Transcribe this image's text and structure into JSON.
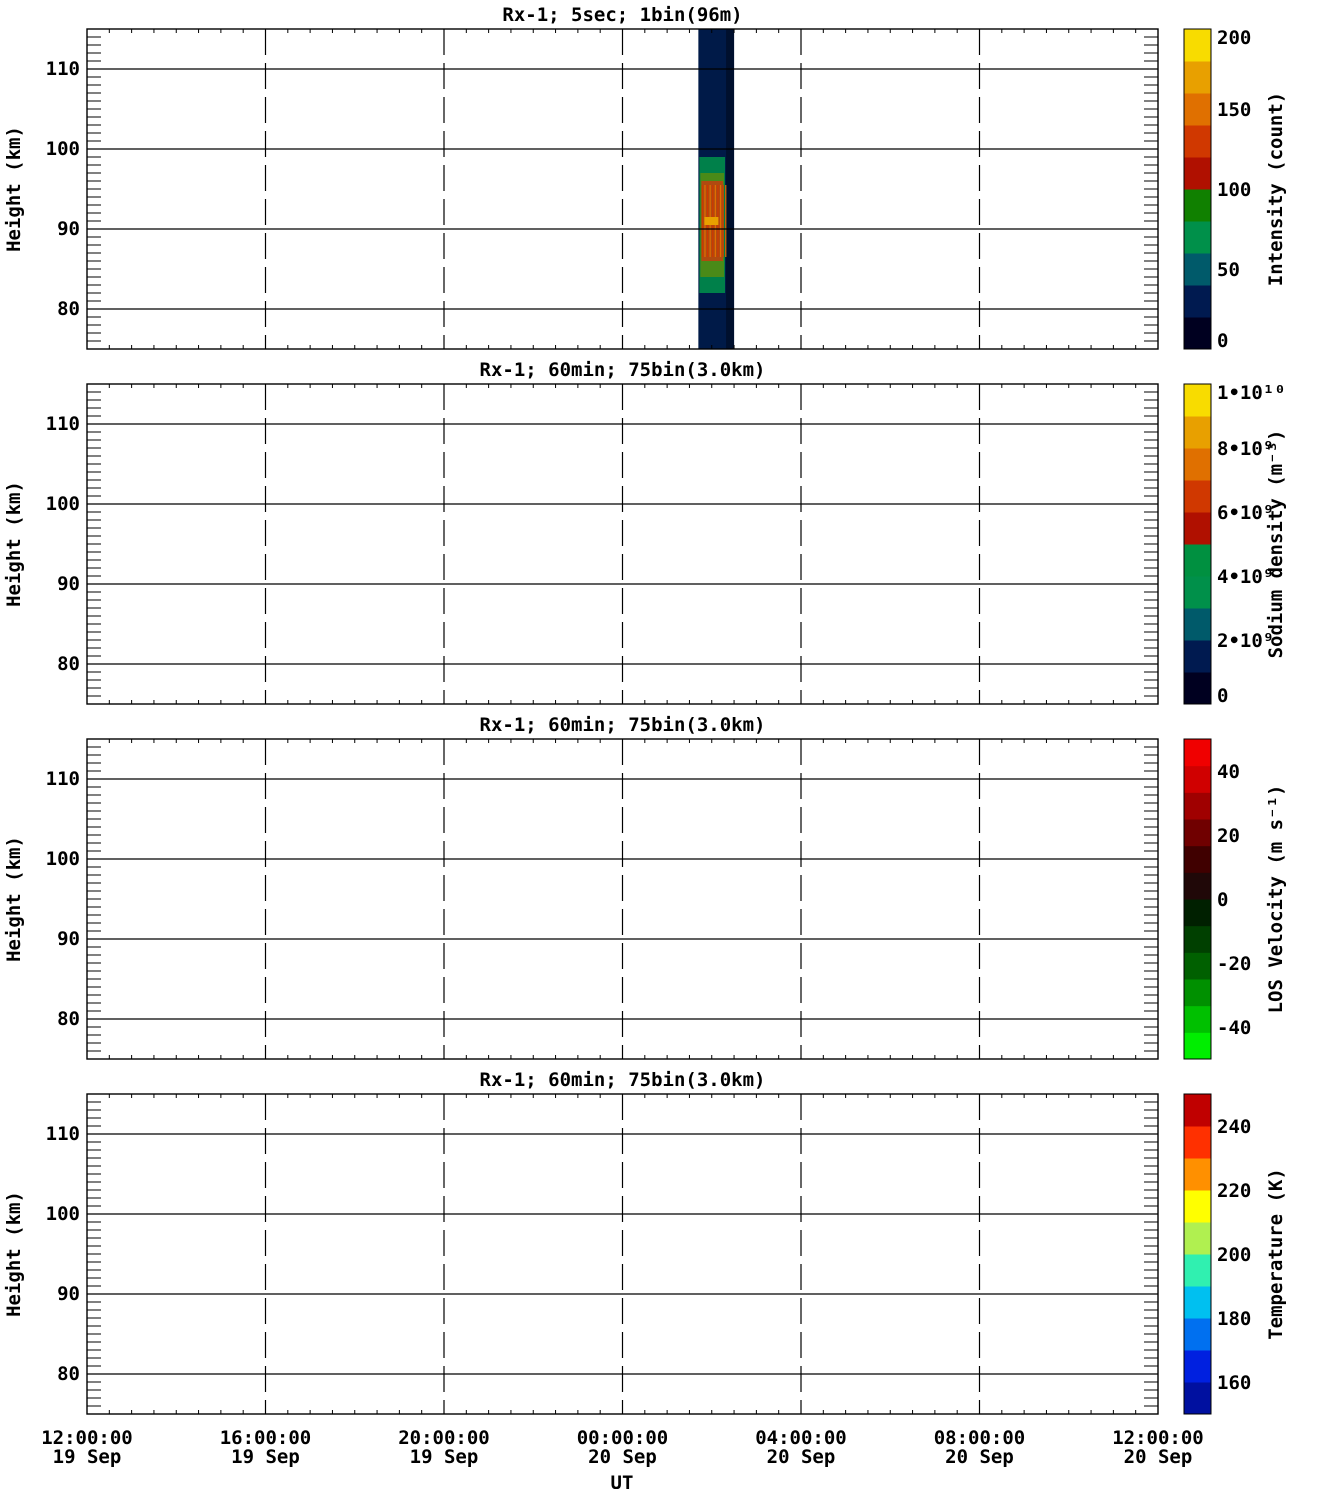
{
  "x_axis": {
    "label": "UT",
    "ticks": [
      {
        "time": "12:00:00",
        "date": "19 Sep",
        "hours": 0
      },
      {
        "time": "16:00:00",
        "date": "19 Sep",
        "hours": 4
      },
      {
        "time": "20:00:00",
        "date": "19 Sep",
        "hours": 8
      },
      {
        "time": "00:00:00",
        "date": "20 Sep",
        "hours": 12
      },
      {
        "time": "04:00:00",
        "date": "20 Sep",
        "hours": 16
      },
      {
        "time": "08:00:00",
        "date": "20 Sep",
        "hours": 20
      },
      {
        "time": "12:00:00",
        "date": "20 Sep",
        "hours": 24
      }
    ]
  },
  "chart_data": [
    {
      "type": "heatmap",
      "title": "Rx-1;  5sec; 1bin(96m)",
      "ylabel": "Height (km)",
      "xlim_hours": [
        0,
        24
      ],
      "ylim": [
        75,
        115
      ],
      "yticks": [
        80,
        90,
        100,
        110
      ],
      "colorbar": {
        "label": "Intensity (count)",
        "ticks": [
          "0",
          "50",
          "100",
          "150",
          "200"
        ],
        "colors": [
          "#000020",
          "#001a50",
          "#005a6a",
          "#00904a",
          "#108000",
          "#b01000",
          "#d03800",
          "#e07000",
          "#e8a000",
          "#f8dc00"
        ]
      },
      "observation": {
        "start_hours": 13.7,
        "end_hours": 14.5
      },
      "layer": {
        "peak_height_km": 91,
        "bottom_km": 82,
        "top_km": 99
      }
    },
    {
      "type": "heatmap",
      "title": "Rx-1; 60min; 75bin(3.0km)",
      "ylabel": "Height (km)",
      "xlim_hours": [
        0,
        24
      ],
      "ylim": [
        75,
        115
      ],
      "yticks": [
        80,
        90,
        100,
        110
      ],
      "colorbar": {
        "label": "Sodium density (m⁻³)",
        "ticks": [
          "0",
          "2•10⁹",
          "4•10⁹",
          "6•10⁹",
          "8•10⁹",
          "1•10¹⁰"
        ],
        "colors": [
          "#000020",
          "#001a50",
          "#005a6a",
          "#00904a",
          "#009040",
          "#b01000",
          "#d03800",
          "#e07000",
          "#e8a000",
          "#f8dc00"
        ]
      }
    },
    {
      "type": "heatmap",
      "title": "Rx-1; 60min; 75bin(3.0km)",
      "ylabel": "Height (km)",
      "xlim_hours": [
        0,
        24
      ],
      "ylim": [
        75,
        115
      ],
      "yticks": [
        80,
        90,
        100,
        110
      ],
      "colorbar": {
        "label": "LOS Velocity (m s⁻¹)",
        "ticks": [
          "-40",
          "-20",
          "0",
          "20",
          "40"
        ],
        "colors": [
          "#00ee00",
          "#00c000",
          "#009000",
          "#006000",
          "#004000",
          "#002000",
          "#200808",
          "#400000",
          "#700000",
          "#a00000",
          "#d00000",
          "#f00000"
        ]
      }
    },
    {
      "type": "heatmap",
      "title": "Rx-1; 60min; 75bin(3.0km)",
      "ylabel": "Height (km)",
      "xlim_hours": [
        0,
        24
      ],
      "ylim": [
        75,
        115
      ],
      "yticks": [
        80,
        90,
        100,
        110
      ],
      "colorbar": {
        "label": "Temperature (K)",
        "ticks": [
          "160",
          "180",
          "200",
          "220",
          "240"
        ],
        "colors": [
          "#0010a0",
          "#0020e0",
          "#0070f0",
          "#00c0f0",
          "#30f0b0",
          "#b0f050",
          "#ffff00",
          "#ff9000",
          "#ff3000",
          "#c00000"
        ]
      }
    }
  ]
}
